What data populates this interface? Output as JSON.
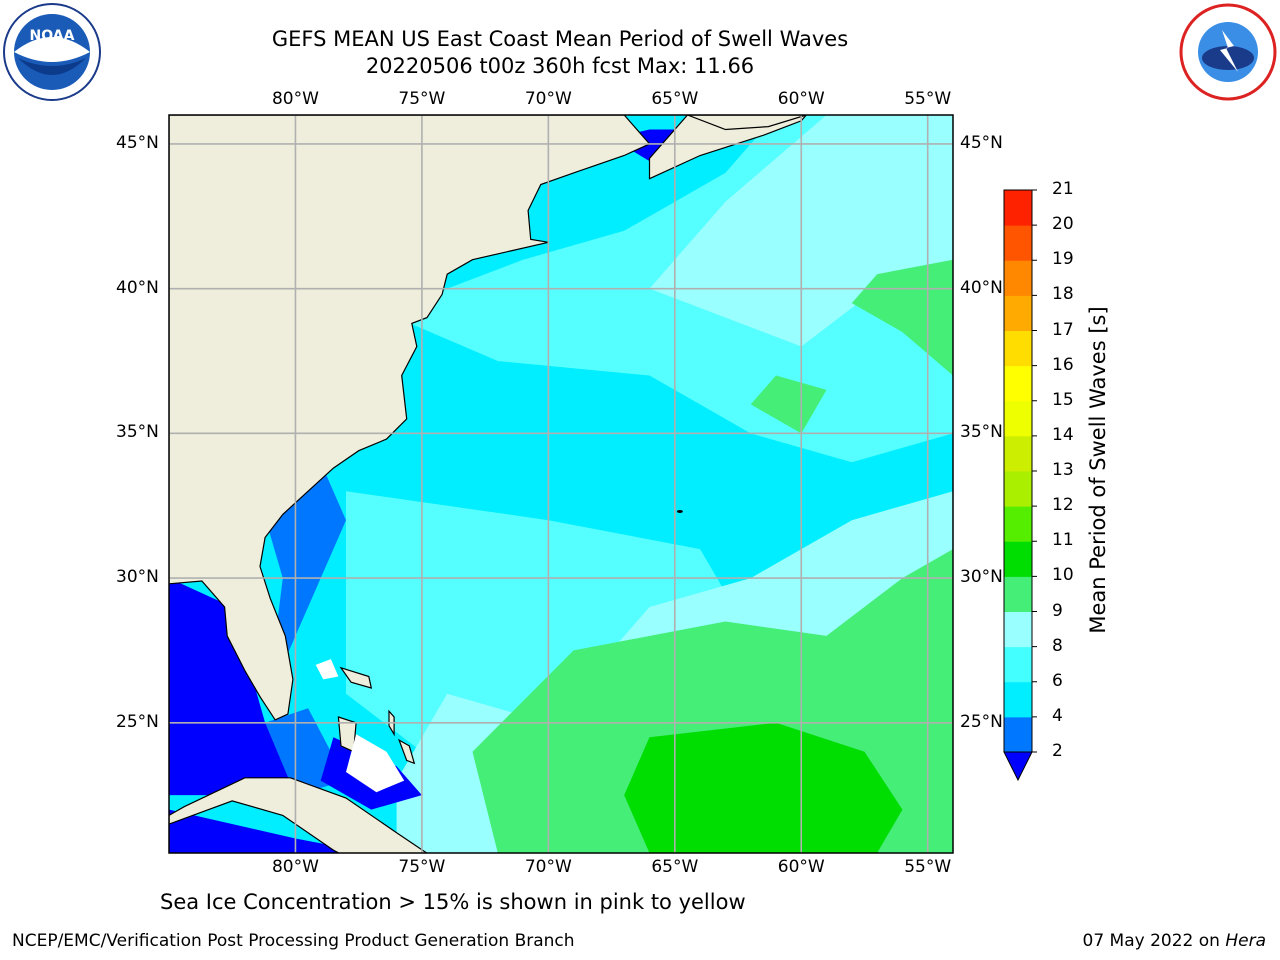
{
  "header": {
    "title_line1": "GEFS MEAN US East Coast Mean Period of Swell Waves",
    "title_line2": "20220506 t00z 360h fcst   Max: 11.66"
  },
  "logos": {
    "left": "noaa-logo",
    "right": "nws-logo"
  },
  "map": {
    "lon_ticks": [
      "80°W",
      "75°W",
      "70°W",
      "65°W",
      "60°W",
      "55°W"
    ],
    "lat_ticks": [
      "45°N",
      "40°N",
      "35°N",
      "30°N",
      "25°N"
    ],
    "lon_range": [
      -85,
      -54
    ],
    "lat_range": [
      20.5,
      46
    ],
    "colors": {
      "land": "#efeedc",
      "ocean_lt4": "#0000ff",
      "ocean_4_6": "#0077ff",
      "ocean_6_8": "#00eeff",
      "ocean_8_9": "#55ffff",
      "ocean_9_10": "#99ffff",
      "ocean_10_11": "#44ee77",
      "ocean_11_12": "#00dd00",
      "grid": "#b0b0b0",
      "coast": "#000000"
    }
  },
  "colorbar": {
    "title": "Mean Period of Swell Waves [s]",
    "levels": [
      "2",
      "4",
      "6",
      "8",
      "9",
      "10",
      "11",
      "12",
      "13",
      "14",
      "15",
      "16",
      "17",
      "18",
      "19",
      "20",
      "21"
    ],
    "colors": [
      "#0077ff",
      "#00eeff",
      "#44ffff",
      "#99ffff",
      "#44ee77",
      "#00dd00",
      "#55ee00",
      "#aaee00",
      "#ccee00",
      "#eeff00",
      "#ffff00",
      "#ffdd00",
      "#ffaa00",
      "#ff8800",
      "#ff5500",
      "#ff2200"
    ],
    "under_color": "#0000ff",
    "over_color": "#ff0000"
  },
  "caption": "Sea Ice Concentration > 15% is shown in pink to yellow",
  "footer": {
    "left": "NCEP/EMC/Verification Post Processing Product Generation Branch",
    "right_date": "07 May 2022 on",
    "right_host": "Hera"
  }
}
